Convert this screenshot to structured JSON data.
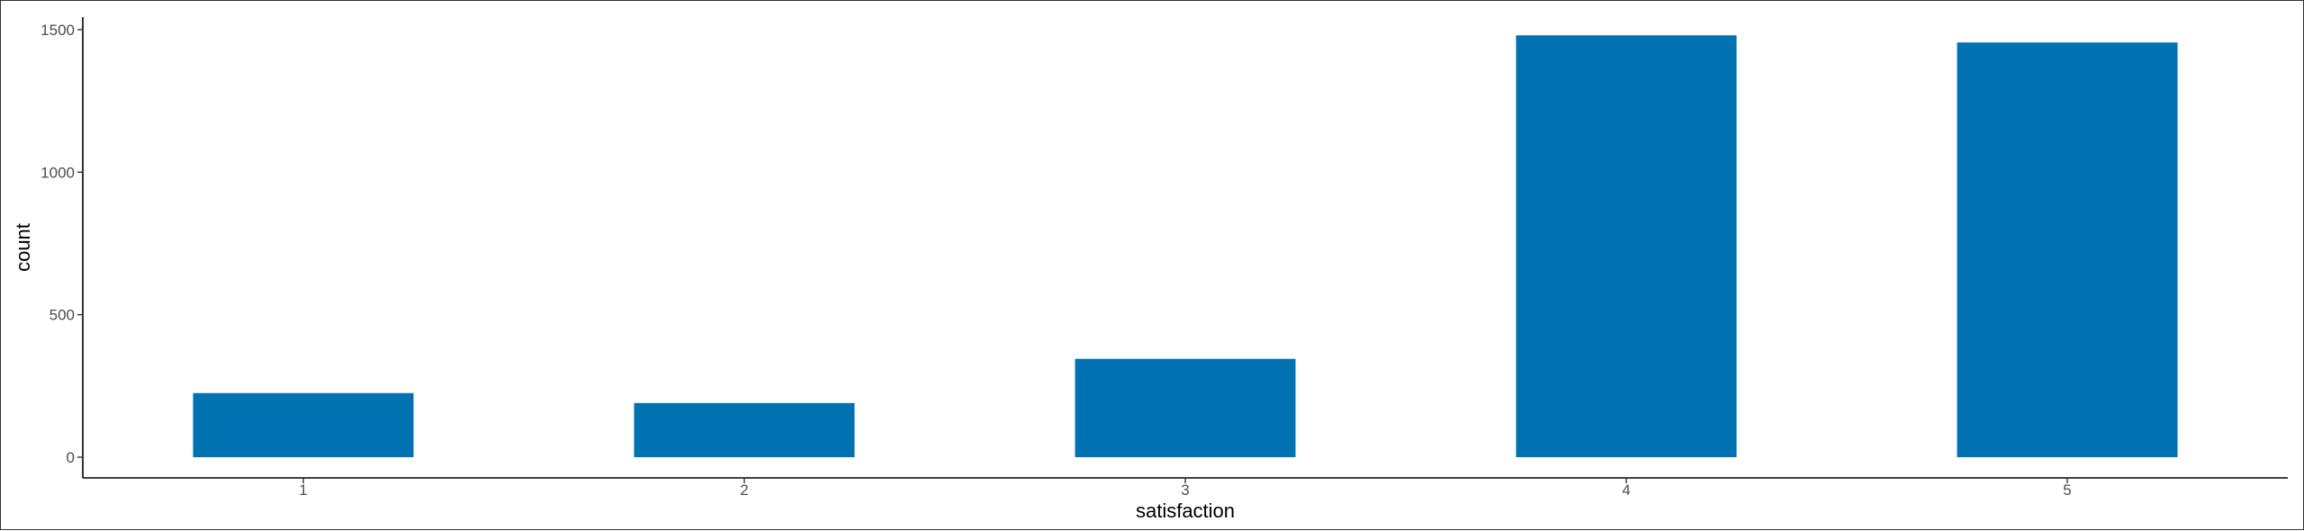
{
  "chart_data": {
    "type": "bar",
    "categories": [
      "1",
      "2",
      "3",
      "4",
      "5"
    ],
    "values": [
      225,
      190,
      345,
      1480,
      1455
    ],
    "xlabel": "satisfaction",
    "ylabel": "count",
    "ylim": [
      0,
      1550
    ],
    "yticks": [
      0,
      500,
      1000,
      1500
    ],
    "ytick_labels": [
      "0",
      "500",
      "1000",
      "1500"
    ],
    "grid": false,
    "legend": "none",
    "bar_color": "#0072B2",
    "axis_color": "#000000",
    "tick_label_color": "#4D4D4D"
  }
}
